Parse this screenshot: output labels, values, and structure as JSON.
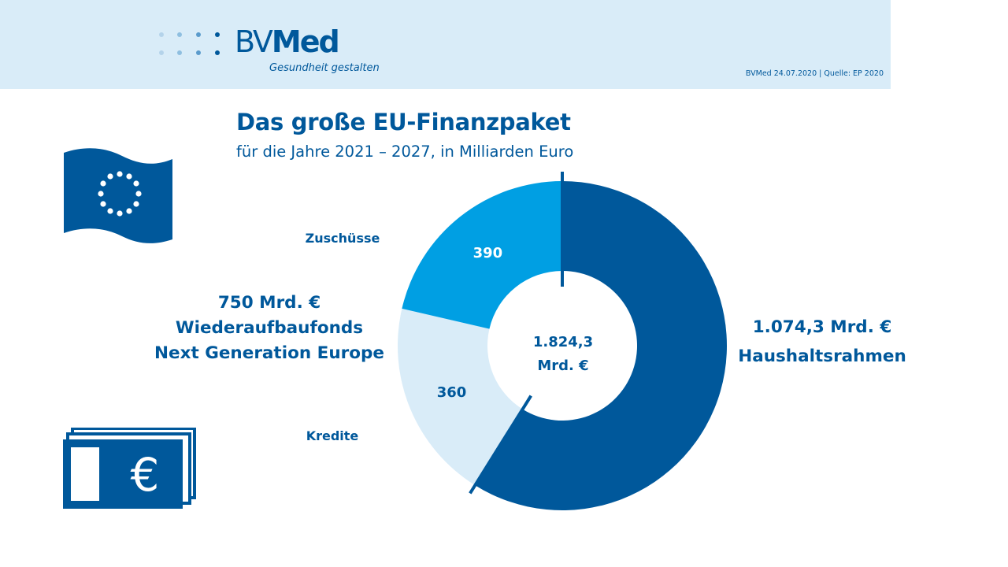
{
  "header": {
    "logo_text_light": "BV",
    "logo_text_bold": "Med",
    "tagline": "Gesundheit gestalten",
    "source": "BVMed 24.07.2020 | Quelle: EP 2020"
  },
  "colors": {
    "dark_blue": "#00589b",
    "mid_blue": "#009fe3",
    "light_blue": "#d9ecf8",
    "white": "#ffffff"
  },
  "icons": [
    "eu-flag-icon",
    "money-stack-icon"
  ],
  "chart_data": {
    "type": "pie",
    "donut": true,
    "title": "Das große EU-Finanzpaket",
    "subtitle": "für die Jahre 2021 – 2027, in Milliarden Euro",
    "center_label_value": "1.824,3",
    "center_label_unit": "Mrd. €",
    "total": 1824.3,
    "slices": [
      {
        "label": "Haushaltsrahmen",
        "value": 1074.3,
        "value_label": "1.074,3 Mrd. €",
        "color": "#00589b"
      },
      {
        "label": "Kredite",
        "value": 360,
        "value_label": "360",
        "color": "#d9ecf8"
      },
      {
        "label": "Zuschüsse",
        "value": 390,
        "value_label": "390",
        "color": "#009fe3"
      }
    ],
    "groups": [
      {
        "members": [
          "Zuschüsse",
          "Kredite"
        ],
        "value_label": "750 Mrd. €",
        "name_line1": "Wiederaufbaufonds",
        "name_line2": "Next Generation Europe"
      },
      {
        "members": [
          "Haushaltsrahmen"
        ],
        "value_label": "1.074,3 Mrd. €",
        "name_line1": "Haushaltsrahmen"
      }
    ]
  }
}
